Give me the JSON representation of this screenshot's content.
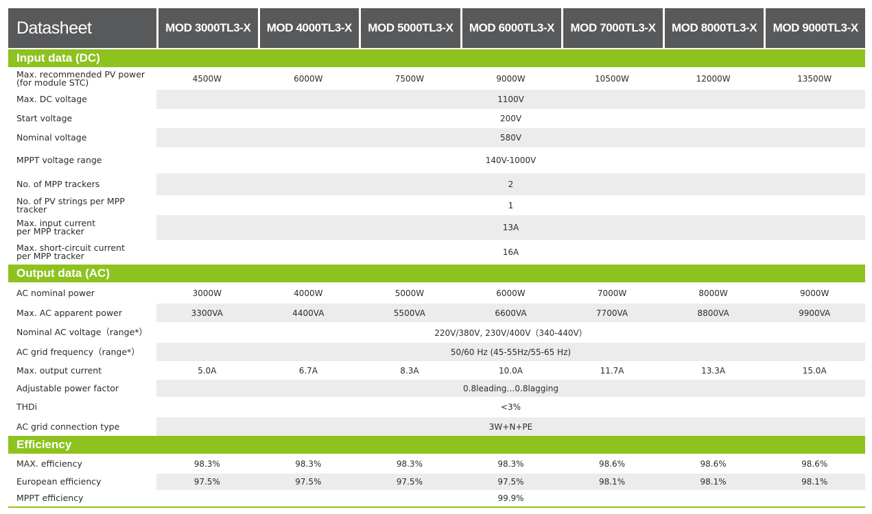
{
  "header": {
    "title": "Datasheet",
    "models": [
      "MOD 3000TL3-X",
      "MOD 4000TL3-X",
      "MOD 5000TL3-X",
      "MOD 6000TL3-X",
      "MOD 7000TL3-X",
      "MOD 8000TL3-X",
      "MOD 9000TL3-X"
    ]
  },
  "sections": [
    {
      "title": "Input data (DC)",
      "rows": [
        {
          "label": "Max. recommended PV power\n(for module STC)",
          "values": [
            "4500W",
            "6000W",
            "7500W",
            "9000W",
            "10500W",
            "12000W",
            "13500W"
          ]
        },
        {
          "label": "Max. DC voltage",
          "value": "1100V"
        },
        {
          "label": "Start voltage",
          "value": "200V"
        },
        {
          "label": "Nominal voltage",
          "value": "580V"
        },
        {
          "label": "MPPT voltage range",
          "value": "140V-1000V"
        },
        {
          "label": "No. of MPP trackers",
          "value": "2"
        },
        {
          "label": "No. of PV strings per MPP tracker",
          "value": "1"
        },
        {
          "label": "Max. input current\nper MPP tracker",
          "value": "13A"
        },
        {
          "label": "Max. short-circuit current\nper MPP tracker",
          "value": "16A"
        }
      ]
    },
    {
      "title": "Output data (AC)",
      "rows": [
        {
          "label": "AC nominal power",
          "values": [
            "3000W",
            "4000W",
            "5000W",
            "6000W",
            "7000W",
            "8000W",
            "9000W"
          ]
        },
        {
          "label": "Max. AC apparent power",
          "values": [
            "3300VA",
            "4400VA",
            "5500VA",
            "6600VA",
            "7700VA",
            "8800VA",
            "9900VA"
          ]
        },
        {
          "label": "Nominal AC voltage（range*）",
          "value": "220V/380V, 230V/400V（340-440V）"
        },
        {
          "label": "AC grid frequency（range*）",
          "value": "50/60 Hz (45-55Hz/55-65 Hz)"
        },
        {
          "label": "Max. output current",
          "values": [
            "5.0A",
            "6.7A",
            "8.3A",
            "10.0A",
            "11.7A",
            "13.3A",
            "15.0A"
          ]
        },
        {
          "label": "Adjustable power factor",
          "value": "0.8leading…0.8lagging"
        },
        {
          "label": "THDi",
          "value": "<3%"
        },
        {
          "label": "AC grid connection type",
          "value": "3W+N+PE"
        }
      ]
    },
    {
      "title": "Efficiency",
      "rows": [
        {
          "label": "MAX. efficiency",
          "values": [
            "98.3%",
            "98.3%",
            "98.3%",
            "98.3%",
            "98.6%",
            "98.6%",
            "98.6%"
          ]
        },
        {
          "label": "European efficiency",
          "values": [
            "97.5%",
            "97.5%",
            "97.5%",
            "97.5%",
            "98.1%",
            "98.1%",
            "98.1%"
          ]
        },
        {
          "label": "MPPT efficiency",
          "value": "99.9%"
        }
      ]
    }
  ]
}
